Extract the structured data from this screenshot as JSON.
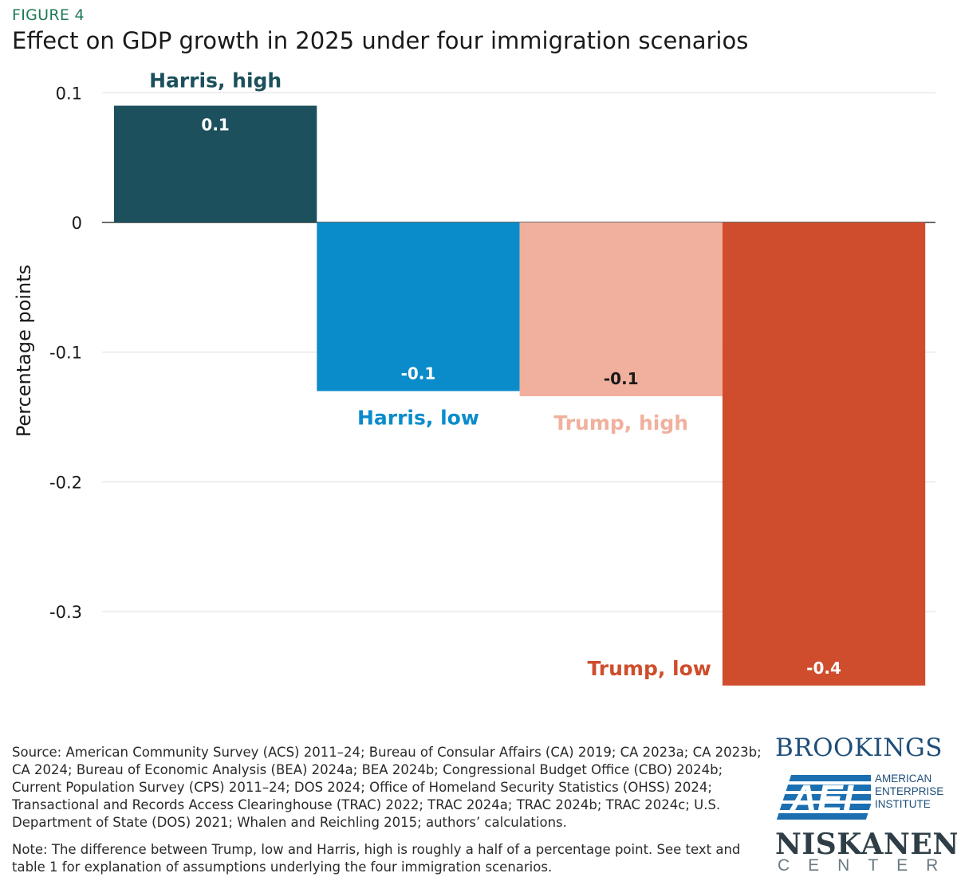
{
  "header": {
    "figure_label": "FIGURE 4",
    "title": "Effect on GDP growth in 2025 under four immigration scenarios"
  },
  "chart_data": {
    "type": "bar",
    "title": "Effect on GDP growth in 2025 under four immigration scenarios",
    "ylabel": "Percentage points",
    "xlabel": "",
    "ylim": [
      -0.36,
      0.1
    ],
    "yticks": [
      0.1,
      0,
      -0.1,
      -0.2,
      -0.3
    ],
    "ytick_labels": [
      "0.1",
      "0",
      "-0.1",
      "-0.2",
      "-0.3"
    ],
    "grid": true,
    "categories": [
      "Harris, high",
      "Harris, low",
      "Trump, high",
      "Trump, low"
    ],
    "values": [
      0.09,
      -0.13,
      -0.134,
      -0.357
    ],
    "data_labels": [
      "0.1",
      "-0.1",
      "-0.1",
      "-0.4"
    ],
    "colors": [
      "#1b505c",
      "#0a8ccb",
      "#f0b09d",
      "#cf4d2c"
    ],
    "label_colors": [
      "#ffffff",
      "#ffffff",
      "#1a1a1a",
      "#ffffff"
    ],
    "category_label_colors": [
      "#1b505c",
      "#0a8ccb",
      "#f0b09d",
      "#cf4d2c"
    ]
  },
  "footer": {
    "source": "Source: American Community Survey (ACS) 2011–24; Bureau of Consular Affairs (CA) 2019; CA 2023a; CA 2023b; CA 2024; Bureau of Economic Analysis (BEA) 2024a; BEA 2024b; Congressional Budget Office (CBO) 2024b; Current Population Survey (CPS) 2011–24; DOS 2024; Office of Homeland Security Statistics (OHSS) 2024; Transactional and Records Access Clearinghouse (TRAC) 2022; TRAC 2024a; TRAC 2024b; TRAC 2024c; U.S. Department of State (DOS) 2021; Whalen and Reichling 2015; authors’ calculations.",
    "note": "Note: The difference between Trump, low and Harris, high is roughly a half of a percentage point. See text and table 1 for explanation of assumptions underlying the four immigration scenarios."
  },
  "logos": {
    "brookings": "BROOKINGS",
    "aei_mark": "AEI",
    "aei_lines": [
      "AMERICAN",
      "ENTERPRISE",
      "INSTITUTE"
    ],
    "niskanen": "NISKANEN",
    "niskanen_sub": "CENTER",
    "colors": {
      "brookings": "#1f4e79",
      "aei": "#1b6fb0",
      "niskanen": "#2f3e46"
    }
  }
}
